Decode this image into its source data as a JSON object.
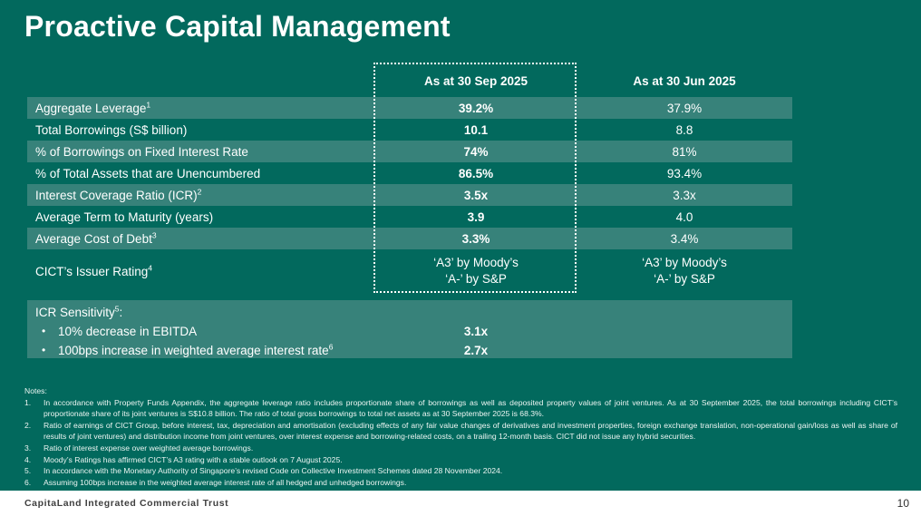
{
  "slide": {
    "title": "Proactive Capital Management",
    "page_number": "10",
    "footer_company": "CapitaLand Integrated Commercial Trust"
  },
  "colors": {
    "background": "#02695D",
    "row_highlight": "#37827A",
    "text": "#FFFFFF",
    "footer_background": "#FFFFFF"
  },
  "table": {
    "col_headers": {
      "sep": "As at 30 Sep 2025",
      "jun": "As at 30 Jun 2025"
    },
    "rows": [
      {
        "label": "Aggregate Leverage",
        "sup": "1",
        "sep": "39.2%",
        "jun": "37.9%"
      },
      {
        "label": "Total Borrowings (S$ billion)",
        "sup": "",
        "sep": "10.1",
        "jun": "8.8"
      },
      {
        "label": "% of Borrowings on Fixed Interest Rate",
        "sup": "",
        "sep": "74%",
        "jun": "81%"
      },
      {
        "label": "% of Total Assets that are Unencumbered",
        "sup": "",
        "sep": "86.5%",
        "jun": "93.4%"
      },
      {
        "label": "Interest Coverage Ratio (ICR)",
        "sup": "2",
        "sep": "3.5x",
        "jun": "3.3x"
      },
      {
        "label": "Average Term to Maturity (years)",
        "sup": "",
        "sep": "3.9",
        "jun": "4.0"
      },
      {
        "label": "Average Cost of Debt",
        "sup": "3",
        "sep": "3.3%",
        "jun": "3.4%"
      },
      {
        "label": "CICT’s Issuer Rating",
        "sup": "4",
        "sep_line1": "‘A3’ by Moody’s",
        "sep_line2": "‘A-’ by S&P",
        "jun_line1": "‘A3’ by Moody’s",
        "jun_line2": "‘A-’ by S&P"
      }
    ]
  },
  "icr_sensitivity": {
    "heading": "ICR Sensitivity",
    "heading_sup": "5",
    "heading_colon": ":",
    "items": [
      {
        "bullet": "•",
        "text": "10% decrease in EBITDA",
        "sup": "",
        "value": "3.1x"
      },
      {
        "bullet": "•",
        "text": "100bps increase in weighted average interest rate",
        "sup": "6",
        "value": "2.7x"
      }
    ]
  },
  "notes": {
    "title": "Notes:",
    "items": [
      {
        "num": "1.",
        "text": "In accordance with Property Funds Appendix, the aggregate leverage ratio includes proportionate share of borrowings as well as deposited property values of joint ventures. As at 30 September 2025, the total borrowings including CICT’s proportionate share of its joint ventures is S$10.8 billion. The ratio of total gross borrowings to total net assets as at 30 September 2025 is 68.3%."
      },
      {
        "num": "2.",
        "text": "Ratio of earnings of CICT Group, before interest, tax, depreciation and amortisation (excluding effects of any fair value changes of derivatives and investment properties, foreign exchange translation, non-operational gain/loss as well as share of results of joint ventures) and distribution income from joint ventures, over interest expense and borrowing-related costs, on a trailing 12-month basis. CICT did not issue any hybrid securities."
      },
      {
        "num": "3.",
        "text": "Ratio of interest expense over weighted average borrowings."
      },
      {
        "num": "4.",
        "text": "Moody’s Ratings has affirmed CICT’s A3 rating with a stable outlook on 7 August 2025."
      },
      {
        "num": "5.",
        "text": "In accordance with the Monetary Authority of Singapore’s revised Code on Collective Investment Schemes dated 28 November 2024."
      },
      {
        "num": "6.",
        "text": "Assuming 100bps increase in the weighted average interest rate of all hedged and unhedged borrowings."
      }
    ]
  }
}
